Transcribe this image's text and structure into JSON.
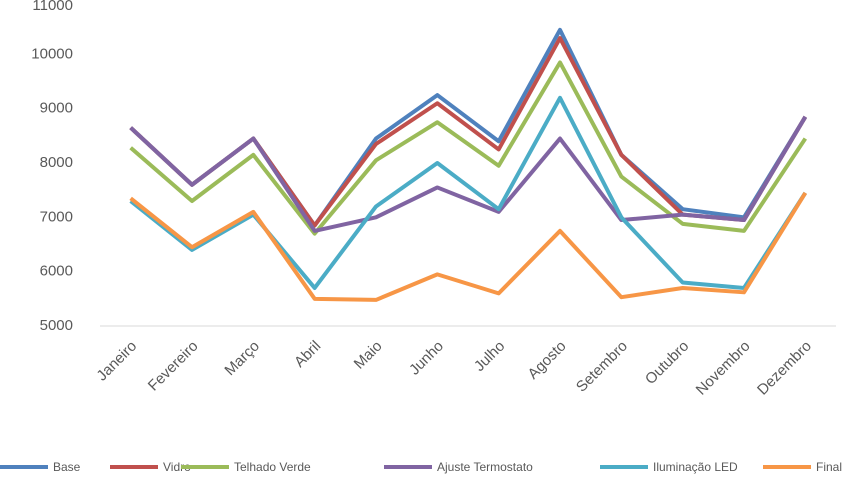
{
  "chart_data": {
    "type": "line",
    "categories": [
      "Janeiro",
      "Fevereiro",
      "Março",
      "Abril",
      "Maio",
      "Junho",
      "Julho",
      "Agosto",
      "Setembro",
      "Outubro",
      "Novembro",
      "Dezembro"
    ],
    "series": [
      {
        "name": "Base",
        "color": "#4f81bd",
        "values": [
          8650,
          7600,
          8450,
          6850,
          8450,
          9250,
          8400,
          10450,
          8150,
          7150,
          7000,
          8850
        ]
      },
      {
        "name": "Vidro",
        "color": "#c0504d",
        "values": [
          8650,
          7600,
          8450,
          6850,
          8350,
          9100,
          8250,
          10300,
          8150,
          7050,
          6950,
          8850
        ]
      },
      {
        "name": "Telhado Verde",
        "color": "#9bbb59",
        "values": [
          8280,
          7300,
          8150,
          6700,
          8050,
          8750,
          7950,
          9850,
          7750,
          6880,
          6750,
          8450
        ]
      },
      {
        "name": "Ajuste Termostato",
        "color": "#8064a2",
        "values": [
          8650,
          7600,
          8450,
          6750,
          7000,
          7550,
          7100,
          8450,
          6950,
          7050,
          6950,
          8850
        ]
      },
      {
        "name": "Iluminação LED",
        "color": "#4bacc6",
        "values": [
          7300,
          6400,
          7050,
          5700,
          7200,
          8000,
          7150,
          9200,
          7000,
          5800,
          5700,
          7450
        ]
      },
      {
        "name": "Final",
        "color": "#f79646",
        "values": [
          7350,
          6450,
          7100,
          5500,
          5480,
          5950,
          5600,
          6750,
          5530,
          5700,
          5620,
          7450
        ]
      }
    ],
    "ylim": [
      5000,
      11000
    ],
    "yticks": [
      5000,
      6000,
      7000,
      8000,
      9000,
      10000,
      11000
    ],
    "grid": false,
    "legend": "bottom"
  }
}
